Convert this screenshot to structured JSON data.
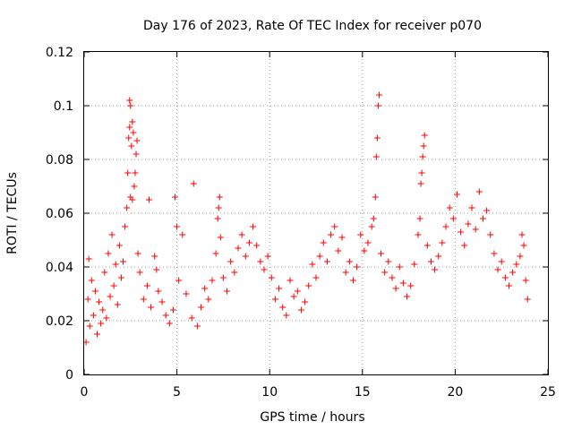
{
  "chart_data": {
    "type": "scatter",
    "title": "Day 176 of 2023, Rate Of TEC Index for receiver p070",
    "xlabel": "GPS time / hours",
    "ylabel": "ROTI / TECUs",
    "xlim": [
      0,
      25
    ],
    "ylim": [
      0,
      0.12
    ],
    "x_ticks": [
      "0",
      "5",
      "10",
      "15",
      "20",
      "25"
    ],
    "y_ticks": [
      "0",
      "0.02",
      "0.04",
      "0.06",
      "0.08",
      "0.1",
      "0.12"
    ],
    "grid": true,
    "marker": "+",
    "color": "#ff0000",
    "series": [
      {
        "name": "",
        "points": [
          [
            0.1,
            0.012
          ],
          [
            0.2,
            0.028
          ],
          [
            0.25,
            0.043
          ],
          [
            0.3,
            0.018
          ],
          [
            0.4,
            0.035
          ],
          [
            0.5,
            0.022
          ],
          [
            0.6,
            0.031
          ],
          [
            0.7,
            0.015
          ],
          [
            0.8,
            0.027
          ],
          [
            0.9,
            0.019
          ],
          [
            1.0,
            0.024
          ],
          [
            1.1,
            0.038
          ],
          [
            1.2,
            0.021
          ],
          [
            1.3,
            0.045
          ],
          [
            1.4,
            0.029
          ],
          [
            1.5,
            0.052
          ],
          [
            1.6,
            0.033
          ],
          [
            1.7,
            0.041
          ],
          [
            1.8,
            0.026
          ],
          [
            1.9,
            0.048
          ],
          [
            2.0,
            0.036
          ],
          [
            2.1,
            0.042
          ],
          [
            2.2,
            0.055
          ],
          [
            2.3,
            0.062
          ],
          [
            2.35,
            0.075
          ],
          [
            2.4,
            0.088
          ],
          [
            2.45,
            0.092
          ],
          [
            2.45,
            0.102
          ],
          [
            2.5,
            0.1
          ],
          [
            2.55,
            0.085
          ],
          [
            2.6,
            0.094
          ],
          [
            2.65,
            0.09
          ],
          [
            2.7,
            0.07
          ],
          [
            2.75,
            0.075
          ],
          [
            2.8,
            0.082
          ],
          [
            2.85,
            0.087
          ],
          [
            2.5,
            0.066
          ],
          [
            2.6,
            0.065
          ],
          [
            2.9,
            0.045
          ],
          [
            3.0,
            0.038
          ],
          [
            3.2,
            0.028
          ],
          [
            3.4,
            0.033
          ],
          [
            3.5,
            0.065
          ],
          [
            3.6,
            0.025
          ],
          [
            3.8,
            0.044
          ],
          [
            3.9,
            0.039
          ],
          [
            4.0,
            0.031
          ],
          [
            4.2,
            0.027
          ],
          [
            4.4,
            0.022
          ],
          [
            4.6,
            0.019
          ],
          [
            4.8,
            0.024
          ],
          [
            4.9,
            0.066
          ],
          [
            5.0,
            0.055
          ],
          [
            5.1,
            0.035
          ],
          [
            5.3,
            0.052
          ],
          [
            5.5,
            0.03
          ],
          [
            5.8,
            0.021
          ],
          [
            5.9,
            0.071
          ],
          [
            6.1,
            0.018
          ],
          [
            6.3,
            0.025
          ],
          [
            6.5,
            0.032
          ],
          [
            6.7,
            0.028
          ],
          [
            6.9,
            0.035
          ],
          [
            7.1,
            0.045
          ],
          [
            7.2,
            0.058
          ],
          [
            7.25,
            0.062
          ],
          [
            7.3,
            0.066
          ],
          [
            7.35,
            0.051
          ],
          [
            7.5,
            0.036
          ],
          [
            7.7,
            0.031
          ],
          [
            7.9,
            0.042
          ],
          [
            8.1,
            0.038
          ],
          [
            8.3,
            0.047
          ],
          [
            8.5,
            0.052
          ],
          [
            8.7,
            0.044
          ],
          [
            8.9,
            0.049
          ],
          [
            9.1,
            0.055
          ],
          [
            9.3,
            0.048
          ],
          [
            9.5,
            0.042
          ],
          [
            9.7,
            0.039
          ],
          [
            9.9,
            0.044
          ],
          [
            10.1,
            0.036
          ],
          [
            10.3,
            0.028
          ],
          [
            10.5,
            0.032
          ],
          [
            10.7,
            0.025
          ],
          [
            10.9,
            0.022
          ],
          [
            11.1,
            0.035
          ],
          [
            11.3,
            0.029
          ],
          [
            11.5,
            0.031
          ],
          [
            11.7,
            0.024
          ],
          [
            11.9,
            0.027
          ],
          [
            12.1,
            0.033
          ],
          [
            12.3,
            0.041
          ],
          [
            12.5,
            0.036
          ],
          [
            12.7,
            0.044
          ],
          [
            12.9,
            0.049
          ],
          [
            13.1,
            0.042
          ],
          [
            13.3,
            0.052
          ],
          [
            13.5,
            0.055
          ],
          [
            13.7,
            0.046
          ],
          [
            13.9,
            0.051
          ],
          [
            14.1,
            0.038
          ],
          [
            14.3,
            0.042
          ],
          [
            14.5,
            0.035
          ],
          [
            14.7,
            0.04
          ],
          [
            14.9,
            0.052
          ],
          [
            15.1,
            0.046
          ],
          [
            15.3,
            0.049
          ],
          [
            15.5,
            0.055
          ],
          [
            15.6,
            0.058
          ],
          [
            15.7,
            0.066
          ],
          [
            15.75,
            0.081
          ],
          [
            15.8,
            0.088
          ],
          [
            15.85,
            0.1
          ],
          [
            15.9,
            0.104
          ],
          [
            16.0,
            0.045
          ],
          [
            16.2,
            0.038
          ],
          [
            16.4,
            0.042
          ],
          [
            16.6,
            0.036
          ],
          [
            16.8,
            0.032
          ],
          [
            17.0,
            0.04
          ],
          [
            17.2,
            0.034
          ],
          [
            17.4,
            0.029
          ],
          [
            17.6,
            0.033
          ],
          [
            17.8,
            0.041
          ],
          [
            18.0,
            0.052
          ],
          [
            18.1,
            0.058
          ],
          [
            18.15,
            0.071
          ],
          [
            18.2,
            0.075
          ],
          [
            18.25,
            0.081
          ],
          [
            18.3,
            0.085
          ],
          [
            18.35,
            0.089
          ],
          [
            18.5,
            0.048
          ],
          [
            18.7,
            0.042
          ],
          [
            18.9,
            0.039
          ],
          [
            19.1,
            0.044
          ],
          [
            19.3,
            0.049
          ],
          [
            19.5,
            0.055
          ],
          [
            19.7,
            0.062
          ],
          [
            19.9,
            0.058
          ],
          [
            20.1,
            0.067
          ],
          [
            20.3,
            0.053
          ],
          [
            20.5,
            0.048
          ],
          [
            20.7,
            0.056
          ],
          [
            20.9,
            0.062
          ],
          [
            21.1,
            0.054
          ],
          [
            21.3,
            0.068
          ],
          [
            21.5,
            0.058
          ],
          [
            21.7,
            0.061
          ],
          [
            21.9,
            0.052
          ],
          [
            22.1,
            0.045
          ],
          [
            22.3,
            0.039
          ],
          [
            22.5,
            0.042
          ],
          [
            22.7,
            0.036
          ],
          [
            22.9,
            0.033
          ],
          [
            23.1,
            0.038
          ],
          [
            23.3,
            0.041
          ],
          [
            23.5,
            0.044
          ],
          [
            23.6,
            0.052
          ],
          [
            23.7,
            0.048
          ],
          [
            23.8,
            0.035
          ],
          [
            23.9,
            0.028
          ]
        ]
      }
    ]
  }
}
